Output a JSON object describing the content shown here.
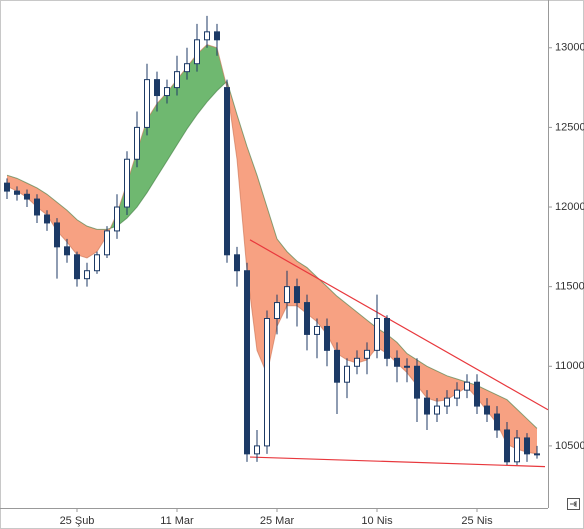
{
  "chart_data": {
    "type": "candlestick",
    "categories": [
      null,
      null,
      null,
      null,
      null,
      null,
      null,
      "25 Şub",
      null,
      null,
      null,
      null,
      null,
      null,
      null,
      null,
      null,
      "11 Mar",
      null,
      null,
      null,
      null,
      null,
      null,
      null,
      null,
      null,
      "25 Mar",
      null,
      null,
      null,
      null,
      null,
      null,
      null,
      null,
      null,
      "10 Nis",
      null,
      null,
      null,
      null,
      null,
      null,
      null,
      null,
      null,
      "25 Nis",
      null,
      null,
      null,
      null,
      null,
      null
    ],
    "open": [
      12150,
      12100,
      12080,
      12050,
      11950,
      11900,
      11750,
      11700,
      11550,
      11600,
      11700,
      11850,
      12000,
      12300,
      12500,
      12800,
      12700,
      12750,
      12850,
      12900,
      13050,
      13100,
      12750,
      11700,
      11600,
      10450,
      10500,
      11300,
      11400,
      11500,
      11400,
      11200,
      11250,
      11100,
      10900,
      11000,
      11050,
      11100,
      11300,
      11050,
      11000,
      11000,
      10800,
      10700,
      10750,
      10800,
      10850,
      10900,
      10750,
      10700,
      10600,
      10400,
      10550,
      10450
    ],
    "high": [
      12180,
      12130,
      12110,
      12080,
      11980,
      11930,
      11800,
      11720,
      11650,
      11720,
      11880,
      12080,
      12350,
      12600,
      12900,
      12850,
      12800,
      12950,
      13000,
      13150,
      13200,
      13150,
      12800,
      11750,
      11650,
      10600,
      11350,
      11450,
      11600,
      11550,
      11450,
      11300,
      11300,
      11150,
      11050,
      11100,
      11150,
      11450,
      11320,
      11100,
      11050,
      11050,
      10850,
      10800,
      10850,
      10900,
      10950,
      10950,
      10800,
      10750,
      10650,
      10600,
      10580,
      10500
    ],
    "low": [
      12050,
      12040,
      12000,
      11900,
      11850,
      11550,
      11650,
      11500,
      11500,
      11580,
      11680,
      11800,
      11950,
      12250,
      12450,
      12600,
      12650,
      12700,
      12800,
      12850,
      13000,
      12950,
      11650,
      11500,
      10400,
      10400,
      10450,
      11200,
      11300,
      11250,
      11100,
      11050,
      11000,
      10700,
      10800,
      10950,
      10950,
      11050,
      11000,
      10900,
      10900,
      10650,
      10600,
      10650,
      10700,
      10750,
      10800,
      10700,
      10650,
      10550,
      10380,
      10380,
      10400,
      10420
    ],
    "close": [
      12100,
      12080,
      12050,
      11950,
      11900,
      11750,
      11700,
      11550,
      11600,
      11700,
      11850,
      12000,
      12300,
      12500,
      12800,
      12700,
      12750,
      12850,
      12900,
      13050,
      13100,
      13050,
      11700,
      11600,
      10450,
      10500,
      11300,
      11400,
      11500,
      11400,
      11200,
      11250,
      11100,
      10900,
      11000,
      11050,
      11100,
      11300,
      11050,
      11000,
      11000,
      10800,
      10700,
      10750,
      10800,
      10850,
      10900,
      10750,
      10700,
      10600,
      10400,
      10550,
      10450,
      10450
    ],
    "up_color": "#ffffff",
    "down_color": "#1c3a66",
    "ma_fast": [
      12130,
      12100,
      12060,
      12000,
      11950,
      11850,
      11780,
      11700,
      11680,
      11720,
      11820,
      11960,
      12150,
      12350,
      12550,
      12650,
      12720,
      12800,
      12880,
      12960,
      13020,
      13000,
      12750,
      12300,
      11600,
      11100,
      10950,
      11250,
      11380,
      11380,
      11330,
      11280,
      11200,
      11080,
      11040,
      11020,
      11040,
      11120,
      11080,
      11020,
      10960,
      10880,
      10800,
      10780,
      10790,
      10830,
      10870,
      10800,
      10720,
      10640,
      10510,
      10480,
      10460,
      10450
    ],
    "ma_slow": [
      12200,
      12180,
      12150,
      12120,
      12080,
      12030,
      11980,
      11920,
      11880,
      11860,
      11860,
      11880,
      11930,
      12000,
      12090,
      12190,
      12290,
      12390,
      12490,
      12580,
      12660,
      12730,
      12790,
      12580,
      12380,
      12200,
      12000,
      11800,
      11720,
      11660,
      11620,
      11560,
      11500,
      11440,
      11390,
      11340,
      11290,
      11240,
      11200,
      11150,
      11080,
      11040,
      11000,
      10970,
      10940,
      10920,
      10900,
      10880,
      10850,
      10820,
      10790,
      10730,
      10670,
      10610
    ],
    "band_up_color": "#6fb870",
    "band_down_color": "#f7a182",
    "trendlines": [
      {
        "x": [
          24.3,
          54.1
        ],
        "y": [
          11794,
          10727
        ],
        "color": "#e8383d"
      },
      {
        "x": [
          24.3,
          53.8
        ],
        "y": [
          10430,
          10370
        ],
        "color": "#e8383d"
      }
    ],
    "ylim": [
      10110,
      13300
    ],
    "yticks": [
      10500,
      11000,
      11500,
      12000,
      12500,
      13000
    ]
  }
}
